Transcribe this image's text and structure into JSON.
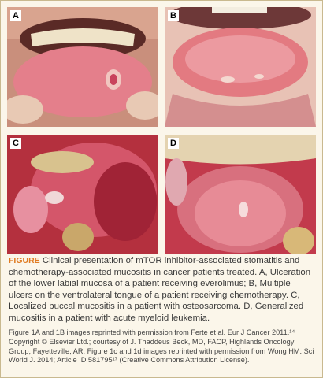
{
  "panels": [
    {
      "label": "A"
    },
    {
      "label": "B"
    },
    {
      "label": "C"
    },
    {
      "label": "D"
    }
  ],
  "caption": {
    "label": "FIGURE",
    "text": "Clinical presentation of mTOR inhibitor-associated stomatitis and chemotherapy-associated mucositis in cancer patients treated. A, Ulceration of the lower labial mucosa of a patient receiving everolimus; B, Multiple ulcers on the ventrolateral tongue of a patient receiving chemotherapy. C, Localized buccal mucositis in a patient with osteosarcoma. D, Generalized mucositis in a patient with acute myeloid leukemia."
  },
  "credits": "Figure 1A and 1B images reprinted with permission from Ferte et al. Eur J Cancer 2011.¹⁴ Copyright © Elsevier Ltd.; courtesy of J. Thaddeus Beck, MD, FACP, Highlands Oncology Group, Fayetteville, AR. Figure 1c and 1d images reprinted with permission from Wong HM. Sci World J. 2014; Article ID 581795¹⁷ (Creative Commons Attribution License)."
}
